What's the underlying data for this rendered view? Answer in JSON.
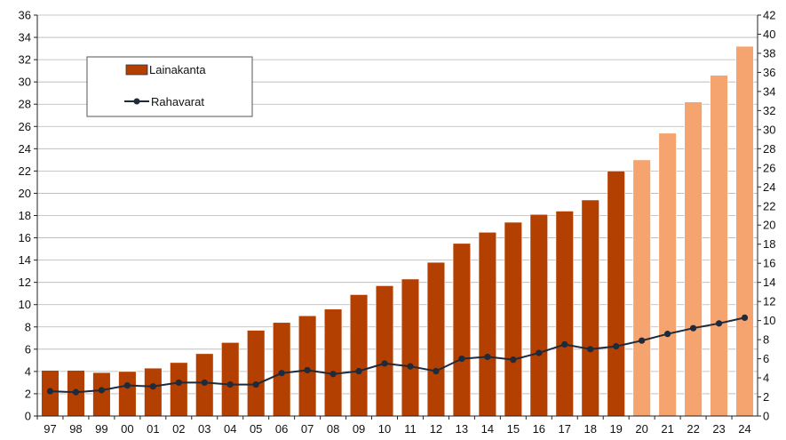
{
  "chart_data": {
    "type": "bar",
    "categories": [
      "97",
      "98",
      "99",
      "00",
      "01",
      "02",
      "03",
      "04",
      "05",
      "06",
      "07",
      "08",
      "09",
      "10",
      "11",
      "12",
      "13",
      "14",
      "15",
      "16",
      "17",
      "18",
      "19",
      "20",
      "21",
      "22",
      "23",
      "24"
    ],
    "series": [
      {
        "name": "Lainakanta",
        "type": "bar",
        "axis": "left",
        "values": [
          4.1,
          4.1,
          3.9,
          4.0,
          4.3,
          4.8,
          5.6,
          6.6,
          7.7,
          8.4,
          9.0,
          9.6,
          10.9,
          11.7,
          12.3,
          13.8,
          15.5,
          16.5,
          17.4,
          18.1,
          18.4,
          19.4,
          22.0,
          23.0,
          25.4,
          28.2,
          30.6,
          33.2
        ],
        "colors": {
          "actual": "#b33f00",
          "forecast": "#f5a36f"
        },
        "forecast_from": "20"
      },
      {
        "name": "Rahavarat",
        "type": "line",
        "axis": "right",
        "values": [
          2.6,
          2.5,
          2.7,
          3.2,
          3.1,
          3.5,
          3.5,
          3.3,
          3.3,
          4.5,
          4.8,
          4.4,
          4.7,
          5.5,
          5.2,
          4.7,
          6.0,
          6.2,
          5.9,
          6.6,
          7.5,
          7.0,
          7.3,
          7.9,
          8.6,
          9.2,
          9.7,
          10.3
        ],
        "color": "#1f2a3a"
      }
    ],
    "y_left": {
      "min": 0,
      "max": 36,
      "step": 2,
      "ticks": [
        "0",
        "2",
        "4",
        "6",
        "8",
        "10",
        "12",
        "14",
        "16",
        "18",
        "20",
        "22",
        "24",
        "26",
        "28",
        "30",
        "32",
        "34",
        "36"
      ]
    },
    "y_right": {
      "min": 0,
      "max": 42,
      "step": 2,
      "ticks": [
        "0",
        "2",
        "4",
        "6",
        "8",
        "10",
        "12",
        "14",
        "16",
        "18",
        "20",
        "22",
        "24",
        "26",
        "28",
        "30",
        "32",
        "34",
        "36",
        "38",
        "40",
        "42"
      ]
    },
    "grid": true,
    "legend": {
      "position": "top-left",
      "items": [
        {
          "label": "Lainakanta",
          "kind": "bar",
          "color": "#b33f00"
        },
        {
          "label": "Rahavarat",
          "kind": "line",
          "color": "#1f2a3a"
        }
      ]
    },
    "title": "",
    "xlabel": "",
    "ylabel": ""
  }
}
